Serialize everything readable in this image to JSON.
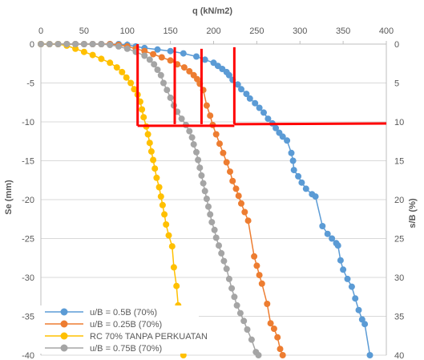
{
  "chart_data": {
    "type": "scatter",
    "title": "",
    "xlabel": "q (kN/m2)",
    "ylabel": "Se (mm)",
    "y2label": "s/B (%)",
    "xlim": [
      0,
      400
    ],
    "ylim": [
      -40,
      0
    ],
    "y2lim": [
      40,
      0
    ],
    "x_ticks": [
      "0",
      "50",
      "100",
      "150",
      "200",
      "250",
      "300",
      "350",
      "400"
    ],
    "y_ticks": [
      "0",
      "-5",
      "-10",
      "-15",
      "-20",
      "-25",
      "-30",
      "-35",
      "-40"
    ],
    "y2_ticks": [
      "0",
      "5",
      "10",
      "15",
      "20",
      "25",
      "30",
      "35",
      "40"
    ],
    "x_axis_position": "top",
    "grid": "horizontal",
    "legend_position": "bottom-left",
    "series": [
      {
        "name": "u/B = 0.5B (70%)",
        "color": "#5B9BD5",
        "points": [
          [
            0,
            0
          ],
          [
            10,
            0
          ],
          [
            20,
            0
          ],
          [
            30,
            0
          ],
          [
            40,
            0
          ],
          [
            50,
            0
          ],
          [
            60,
            0
          ],
          [
            70,
            0
          ],
          [
            80,
            0
          ],
          [
            90,
            0
          ],
          [
            100,
            -0.1
          ],
          [
            110,
            -0.3
          ],
          [
            120,
            -0.5
          ],
          [
            135,
            -0.7
          ],
          [
            150,
            -0.9
          ],
          [
            165,
            -1.2
          ],
          [
            180,
            -1.6
          ],
          [
            190,
            -2.0
          ],
          [
            200,
            -2.4
          ],
          [
            205,
            -2.8
          ],
          [
            210,
            -3.2
          ],
          [
            215,
            -3.6
          ],
          [
            218,
            -4.0
          ],
          [
            222,
            -4.6
          ],
          [
            228,
            -5.2
          ],
          [
            232,
            -5.8
          ],
          [
            238,
            -6.4
          ],
          [
            242,
            -7.0
          ],
          [
            248,
            -7.6
          ],
          [
            253,
            -8.2
          ],
          [
            258,
            -8.8
          ],
          [
            263,
            -9.6
          ],
          [
            268,
            -10.2
          ],
          [
            272,
            -10.8
          ],
          [
            276,
            -11.4
          ],
          [
            280,
            -11.9
          ],
          [
            285,
            -12.4
          ],
          [
            290,
            -14.0
          ],
          [
            292,
            -15.0
          ],
          [
            293,
            -16.2
          ],
          [
            298,
            -17.0
          ],
          [
            302,
            -17.8
          ],
          [
            307,
            -18.6
          ],
          [
            314,
            -19.3
          ],
          [
            318,
            -19.6
          ],
          [
            326,
            -23.4
          ],
          [
            332,
            -24.4
          ],
          [
            337,
            -25.0
          ],
          [
            342,
            -25.6
          ],
          [
            344,
            -25.9
          ],
          [
            347,
            -27.8
          ],
          [
            350,
            -29.0
          ],
          [
            355,
            -30.2
          ],
          [
            360,
            -31.2
          ],
          [
            364,
            -32.7
          ],
          [
            368,
            -34.2
          ],
          [
            372,
            -35.4
          ],
          [
            375,
            -36.0
          ],
          [
            381,
            -40.0
          ]
        ]
      },
      {
        "name": "u/B = 0.25B (70%)",
        "color": "#ED7D31",
        "points": [
          [
            0,
            0
          ],
          [
            10,
            0
          ],
          [
            20,
            0
          ],
          [
            30,
            0
          ],
          [
            40,
            0
          ],
          [
            50,
            0
          ],
          [
            60,
            0
          ],
          [
            70,
            0
          ],
          [
            80,
            0
          ],
          [
            90,
            -0.1
          ],
          [
            100,
            -0.3
          ],
          [
            110,
            -0.6
          ],
          [
            120,
            -0.9
          ],
          [
            130,
            -1.3
          ],
          [
            140,
            -1.7
          ],
          [
            150,
            -2.1
          ],
          [
            158,
            -2.6
          ],
          [
            166,
            -3.0
          ],
          [
            172,
            -3.5
          ],
          [
            177,
            -4.0
          ],
          [
            181,
            -4.5
          ],
          [
            184,
            -5.1
          ],
          [
            188,
            -5.9
          ],
          [
            192,
            -7.9
          ],
          [
            196,
            -9.2
          ],
          [
            199,
            -10.4
          ],
          [
            203,
            -11.6
          ],
          [
            207,
            -12.8
          ],
          [
            211,
            -14.0
          ],
          [
            215,
            -15.2
          ],
          [
            219,
            -16.4
          ],
          [
            222,
            -17.6
          ],
          [
            226,
            -18.6
          ],
          [
            229,
            -19.5
          ],
          [
            232,
            -20.5
          ],
          [
            236,
            -21.6
          ],
          [
            240,
            -22.7
          ],
          [
            247,
            -27.3
          ],
          [
            250,
            -28.5
          ],
          [
            253,
            -29.7
          ],
          [
            256,
            -30.8
          ],
          [
            262,
            -33.4
          ],
          [
            266,
            -35.9
          ],
          [
            270,
            -36.6
          ],
          [
            274,
            -37.7
          ],
          [
            277,
            -39.2
          ],
          [
            280,
            -40.0
          ]
        ]
      },
      {
        "name": "RC 70% TANPA PERKUATAN",
        "color": "#FFC000",
        "points": [
          [
            0,
            0
          ],
          [
            10,
            0
          ],
          [
            20,
            0
          ],
          [
            30,
            -0.2
          ],
          [
            40,
            -0.6
          ],
          [
            50,
            -1.0
          ],
          [
            60,
            -1.4
          ],
          [
            70,
            -1.9
          ],
          [
            80,
            -2.4
          ],
          [
            88,
            -3.0
          ],
          [
            94,
            -3.6
          ],
          [
            99,
            -4.3
          ],
          [
            104,
            -5.0
          ],
          [
            108,
            -5.8
          ],
          [
            112,
            -6.5
          ],
          [
            115,
            -7.4
          ],
          [
            117,
            -8.4
          ],
          [
            119,
            -9.4
          ],
          [
            122,
            -10.6
          ],
          [
            124,
            -11.6
          ],
          [
            126,
            -12.7
          ],
          [
            128,
            -13.8
          ],
          [
            130,
            -14.9
          ],
          [
            132,
            -16.0
          ],
          [
            134,
            -17.2
          ],
          [
            137,
            -18.4
          ],
          [
            139,
            -19.6
          ],
          [
            141,
            -20.7
          ],
          [
            143,
            -21.9
          ],
          [
            145,
            -23.2
          ],
          [
            148,
            -24.6
          ],
          [
            152,
            -26.0
          ],
          [
            154,
            -28.7
          ],
          [
            157,
            -31.1
          ],
          [
            159,
            -33.6
          ],
          [
            162,
            -36.4
          ],
          [
            165,
            -40.0
          ]
        ]
      },
      {
        "name": "u/B = 0.75B (70%)",
        "color": "#A5A5A5",
        "points": [
          [
            0,
            0
          ],
          [
            10,
            0
          ],
          [
            20,
            0
          ],
          [
            30,
            0
          ],
          [
            40,
            0
          ],
          [
            50,
            0
          ],
          [
            60,
            0
          ],
          [
            70,
            0
          ],
          [
            80,
            -0.1
          ],
          [
            90,
            -0.3
          ],
          [
            100,
            -0.6
          ],
          [
            110,
            -1.0
          ],
          [
            120,
            -1.5
          ],
          [
            126,
            -2.0
          ],
          [
            131,
            -2.6
          ],
          [
            135,
            -3.3
          ],
          [
            139,
            -4.0
          ],
          [
            142,
            -5.0
          ],
          [
            146,
            -5.9
          ],
          [
            150,
            -6.9
          ],
          [
            154,
            -7.9
          ],
          [
            158,
            -8.7
          ],
          [
            163,
            -9.6
          ],
          [
            168,
            -10.4
          ],
          [
            172,
            -11.2
          ],
          [
            175,
            -12.0
          ],
          [
            177,
            -12.9
          ],
          [
            180,
            -13.9
          ],
          [
            182,
            -14.9
          ],
          [
            184,
            -15.9
          ],
          [
            186,
            -16.9
          ],
          [
            188,
            -17.9
          ],
          [
            190,
            -18.9
          ],
          [
            192,
            -19.9
          ],
          [
            194,
            -20.9
          ],
          [
            196,
            -21.9
          ],
          [
            198,
            -22.9
          ],
          [
            201,
            -23.9
          ],
          [
            203,
            -24.9
          ],
          [
            206,
            -25.9
          ],
          [
            209,
            -26.9
          ],
          [
            212,
            -27.9
          ],
          [
            215,
            -28.9
          ],
          [
            218,
            -30.2
          ],
          [
            221,
            -31.4
          ],
          [
            224,
            -32.5
          ],
          [
            227,
            -33.6
          ],
          [
            231,
            -34.6
          ],
          [
            235,
            -35.6
          ],
          [
            239,
            -36.7
          ],
          [
            244,
            -38.0
          ],
          [
            249,
            -39.6
          ],
          [
            252,
            -40.0
          ]
        ]
      }
    ],
    "annotation_lines_color": "#FF0000",
    "annotation_lines": [
      {
        "x1": 112,
        "y1": 0,
        "x2": 112,
        "y2": -10.5
      },
      {
        "x1": 155,
        "y1": -0.4,
        "x2": 155,
        "y2": -10.3
      },
      {
        "x1": 186,
        "y1": -0.6,
        "x2": 186,
        "y2": -10.3
      },
      {
        "x1": 224,
        "y1": -0.4,
        "x2": 224,
        "y2": -10.3
      },
      {
        "x1": 112,
        "y1": -10.5,
        "x2": 224,
        "y2": -10.5
      },
      {
        "x1": 224,
        "y1": -10.3,
        "x2": 400,
        "y2": -10.2
      }
    ]
  }
}
